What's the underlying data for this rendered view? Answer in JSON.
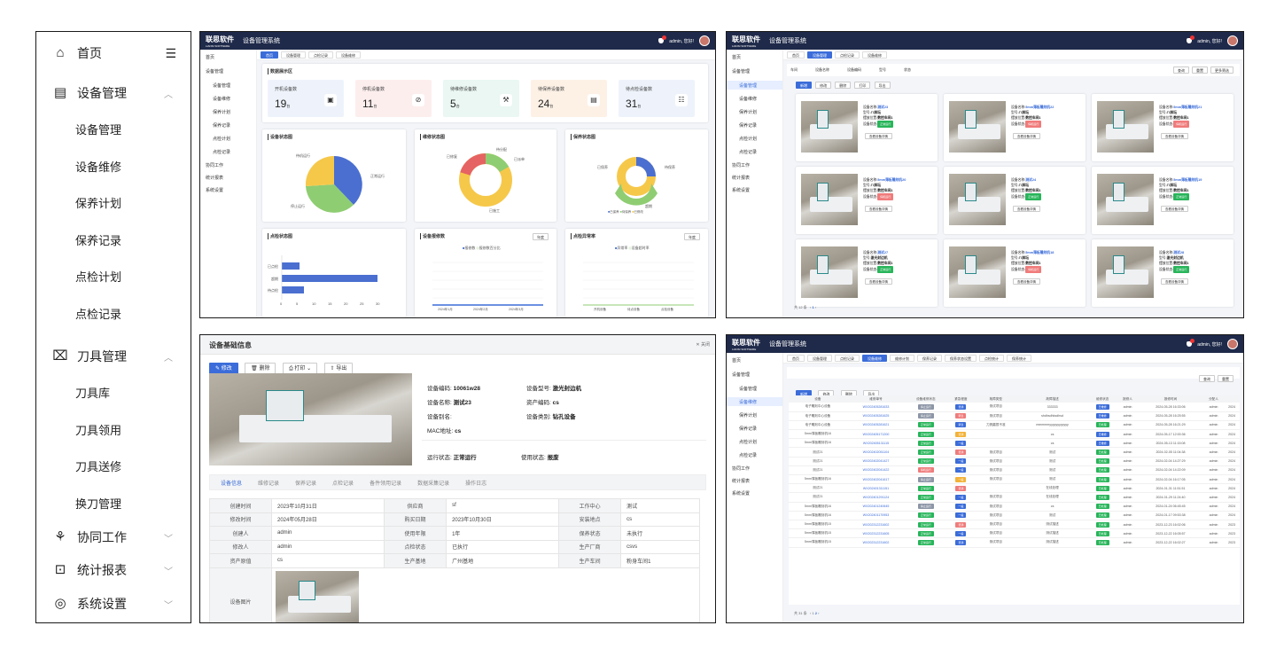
{
  "sidebar": {
    "home": "首页",
    "equipment": {
      "label": "设备管理",
      "items": [
        "设备管理",
        "设备维修",
        "保养计划",
        "保养记录",
        "点检计划",
        "点检记录"
      ]
    },
    "tools": {
      "label": "刀具管理",
      "items": [
        "刀具库",
        "刀具领用",
        "刀具送修",
        "换刀管理"
      ]
    },
    "collab": "协同工作",
    "reports": "统计报表",
    "settings": "系统设置"
  },
  "app": {
    "logo": "联思软件",
    "logo_sub": "LIANSI SOFTWARE",
    "system": "设备管理系统",
    "user": "admin, 您好!",
    "badge": "1"
  },
  "minisidebar": {
    "home": "首页",
    "equip": "设备管理",
    "items": [
      "设备管理",
      "设备维修",
      "保养计划",
      "保养记录",
      "点检计划",
      "点检记录"
    ],
    "collab": "协同工作",
    "reports": "统计报表",
    "settings": "系统设置"
  },
  "dashboard": {
    "tabs": [
      "首页",
      "设备管理",
      "点检记录",
      "设备维修"
    ],
    "section": "数据展示区",
    "stats": [
      {
        "label": "开机设备数",
        "value": "19",
        "unit": "台"
      },
      {
        "label": "停机设备数",
        "value": "11",
        "unit": "台"
      },
      {
        "label": "待维修设备数",
        "value": "5",
        "unit": "台"
      },
      {
        "label": "待保养设备数",
        "value": "24",
        "unit": "台"
      },
      {
        "label": "待点检设备数",
        "value": "31",
        "unit": "台"
      }
    ],
    "colors": [
      "#eef3fb",
      "#fdeeee",
      "#eaf7f3",
      "#fdf1e6",
      "#eef3fb"
    ],
    "c1": {
      "title": "设备状态图",
      "labels": [
        "待机运行",
        "正常运行",
        "停止运行"
      ]
    },
    "c2": {
      "title": "维修状态图",
      "labels": [
        "待分配",
        "已派单",
        "已修复",
        "已施工"
      ]
    },
    "c3": {
      "title": "保养状态图",
      "labels": [
        "已保养",
        "待保养",
        "超期",
        "待保养",
        "已修改"
      ]
    },
    "c4": {
      "title": "点检状态图",
      "labels": [
        "已点检",
        "超期",
        "待点检"
      ],
      "ticks": [
        "0",
        "5",
        "10",
        "15",
        "20",
        "25",
        "30"
      ]
    },
    "c5": {
      "title": "设备报修数",
      "legend": [
        "报修数",
        "报修数百分比"
      ],
      "months": [
        "2024年1月",
        "2024年2月",
        "2024年3月"
      ],
      "select": "年度"
    },
    "c6": {
      "title": "点检异常率",
      "legend": [
        "异常率",
        "设备超时率"
      ],
      "cats": [
        "开机设备",
        "待点设备",
        "点检设备"
      ],
      "select": "年度"
    }
  },
  "cards": {
    "tabs": [
      "首页",
      "设备管理",
      "点检记录",
      "设备维修"
    ],
    "filters": [
      "车间",
      "设备名称",
      "设备编码",
      "型号",
      "状态"
    ],
    "actions": [
      "查询",
      "重置",
      "更多筛选"
    ],
    "toolbar": [
      "新增",
      "修改",
      "删除",
      "打印",
      "导出"
    ],
    "items": [
      {
        "name": "测试23",
        "model": "八斜坛",
        "loc": "数控车间1",
        "status": "正常运行",
        "st": "g"
      },
      {
        "name": "5mm薄板雕刻机22",
        "model": "八斜坛",
        "loc": "数控车间1",
        "status": "停机运行",
        "st": "rd"
      },
      {
        "name": "5mm薄板雕刻机21",
        "model": "八斜坛",
        "loc": "数控车间1",
        "status": "停机运行",
        "st": "rd"
      },
      {
        "name": "5mm薄板雕刻机20",
        "model": "八斜坛",
        "loc": "数控车间1",
        "status": "停机运行",
        "st": "rd"
      },
      {
        "name": "测试24",
        "model": "八斜坛",
        "loc": "数控车间1",
        "status": "正常运行",
        "st": "g"
      },
      {
        "name": "5mm薄板雕刻机19",
        "model": "八斜坛",
        "loc": "数控车间1",
        "status": "正常运行",
        "st": "g"
      },
      {
        "name": "测试27",
        "model": "激光封边机",
        "loc": "数控车间1",
        "status": "正常运行",
        "st": "g"
      },
      {
        "name": "5mm薄板雕刻机18",
        "model": "八斜坛",
        "loc": "数控车间1",
        "status": "停机运行",
        "st": "rd"
      },
      {
        "name": "测试28",
        "model": "激光封边机",
        "loc": "数控车间1",
        "status": "正常运行",
        "st": "g"
      }
    ],
    "keys": [
      "设备名称:",
      "型号:",
      "摆放位置:",
      "设备状态:"
    ],
    "detail_link": "查看设备详情",
    "footer": "共 12 条",
    "page": "1"
  },
  "detail": {
    "title": "设备基础信息",
    "close": "关闭",
    "buttons": [
      "修改",
      "删除",
      "打印",
      "导出"
    ],
    "fields": [
      [
        "设备编码:",
        "10061w28"
      ],
      [
        "设备型号:",
        "激光封边机"
      ],
      [
        "设备名称:",
        "测试23"
      ],
      [
        "资产编码:",
        "cs"
      ],
      [
        "设备别名:",
        ""
      ],
      [
        "设备类别:",
        "钻孔设备"
      ],
      [
        "MAC地址:",
        "cs"
      ],
      [
        "运行状态:",
        "正常运行"
      ],
      [
        "使用状态:",
        "报废"
      ]
    ],
    "tabs": [
      "设备信息",
      "维修记录",
      "保养记录",
      "点检记录",
      "备件领用记录",
      "数据采集记录",
      "操作日志"
    ],
    "rows": [
      [
        "创建时间",
        "2023年10月31日",
        "供应商",
        "sf",
        "工作中心",
        "测试"
      ],
      [
        "修改时间",
        "2024年05月28日",
        "购买日期",
        "2023年10月30日",
        "安装地点",
        "cs"
      ],
      [
        "创建人",
        "admin",
        "使用年限",
        "1年",
        "保养状态",
        "未执行"
      ],
      [
        "修改人",
        "admin",
        "点检状态",
        "已执行",
        "生产厂商",
        "csvs"
      ],
      [
        "资产原值",
        "cs",
        "生产基地",
        "广州基地",
        "生产车间",
        "粉身车间1"
      ]
    ],
    "image_label": "设备图片"
  },
  "list": {
    "tabs": [
      "首页",
      "设备管理",
      "点检记录",
      "设备维修",
      "维修计划",
      "保养记录",
      "保养状态设置",
      "点检统计",
      "保养统计"
    ],
    "headers": [
      "设备",
      "维修单号",
      "设备维修状态",
      "紧急程度",
      "故障类型",
      "故障描述",
      "维修状态",
      "报修人",
      "报修时间",
      "分配人",
      ""
    ],
    "rows": [
      [
        "电子雕刻中心设备",
        "WX202405281633",
        "停止运行",
        "普通",
        "测试项目",
        "333333",
        "已维修",
        "admin",
        "2024-05-28 16:33:06",
        "admin",
        "2024"
      ],
      [
        "电子雕刻中心设备",
        "WX202405281625",
        "停止运行",
        "紧急",
        "测试项目",
        "shdhsdhksdhsd",
        "已维修",
        "admin",
        "2024-05-28 16:25:55",
        "admin",
        "2024"
      ],
      [
        "电子雕刻中心设备",
        "WX202405281621",
        "正常运行",
        "紧急",
        "刀具磨损不准",
        "mmmmmyyyyyyyyyyyy",
        "已处理",
        "admin",
        "2024-05-28 16:21:29",
        "admin",
        "2024"
      ],
      [
        "5mm薄板雕刻机16",
        "WX202405171200",
        "正常运行",
        "普通",
        "",
        "cs",
        "已维修",
        "admin",
        "2024-05-17 12:00:36",
        "admin",
        "2024"
      ],
      [
        "5mm薄板雕刻机16",
        "WX202405131115",
        "正常运行",
        "一般",
        "",
        "cs",
        "已维修",
        "admin",
        "2024-05-13 11:15:08",
        "admin",
        "2024"
      ],
      [
        "测试21",
        "WX202402051104",
        "正常运行",
        "普通",
        "测试项目",
        "测试",
        "已处理",
        "admin",
        "2024-02-05 11:04:38",
        "admin",
        "2024"
      ],
      [
        "测试21",
        "WX202402041427",
        "正常运行",
        "一般",
        "测试项目",
        "测试",
        "已处理",
        "admin",
        "2024-02-04 14:27:29",
        "admin",
        "2024"
      ],
      [
        "测试21",
        "WX202402041422",
        "停机运行",
        "一般",
        "测试项目",
        "测试",
        "已处理",
        "admin",
        "2024-02-04 14:22:09",
        "admin",
        "2024"
      ],
      [
        "5mm薄板雕刻机16",
        "WX202402041617",
        "停止运行",
        "一般",
        "测试项目",
        "测试",
        "已处理",
        "admin",
        "2024-02-04 16:17:05",
        "admin",
        "2024"
      ],
      [
        "测试21",
        "WX202401311151",
        "正常运行",
        "普通",
        "",
        "在线处理",
        "已处理",
        "admin",
        "2024-01-31 11:51:51",
        "admin",
        "2024"
      ],
      [
        "测试21",
        "WX202401291124",
        "正常运行",
        "一般",
        "测试项目",
        "在线处理",
        "已处理",
        "admin",
        "2024-01-29 11:24:40",
        "admin",
        "2024"
      ],
      [
        "5mm薄板雕刻机16",
        "WX202401240645",
        "停止运行",
        "一般",
        "测试项目",
        "cs",
        "已处理",
        "admin",
        "2024-01-24 06:45:45",
        "admin",
        "2024"
      ],
      [
        "5mm薄板雕刻机16",
        "WX202401170953",
        "正常运行",
        "一般",
        "测试项目",
        "测试",
        "已处理",
        "admin",
        "2024-01-17 09:53:38",
        "admin",
        "2024"
      ],
      [
        "5mm薄板雕刻机15",
        "WX202312231602",
        "正常运行",
        "普通",
        "测试项目",
        "测试描述",
        "已处理",
        "admin",
        "2023-12-23 16:02:06",
        "admin",
        "2023"
      ],
      [
        "5mm薄板雕刻机15",
        "WX202312231605",
        "正常运行",
        "一般",
        "测试项目",
        "测试描述",
        "已处理",
        "admin",
        "2023-12-22 16:05:57",
        "admin",
        "2023"
      ],
      [
        "5mm薄板雕刻机15",
        "WX202312231602",
        "正常运行",
        "普通",
        "测试项目",
        "测试描述",
        "已处理",
        "admin",
        "2023-12-22 16:02:27",
        "admin",
        "2023"
      ]
    ],
    "footer": "共 31 条",
    "page": "2"
  }
}
